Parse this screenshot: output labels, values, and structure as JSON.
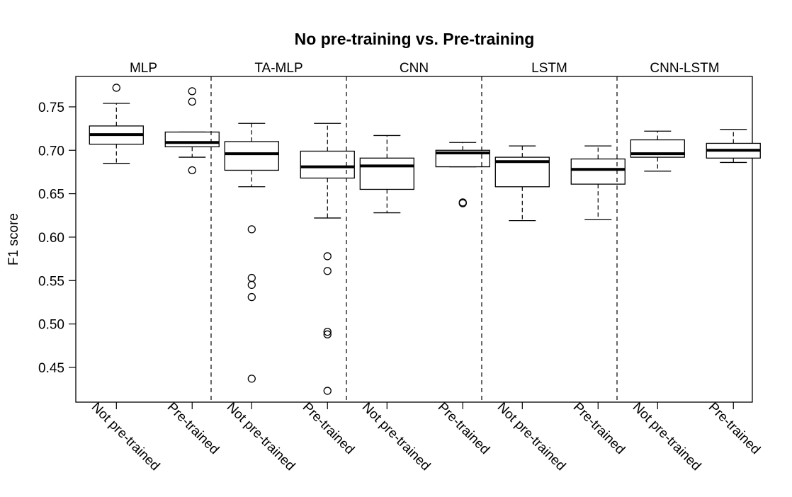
{
  "chart_data": {
    "type": "box",
    "title": "No pre-training vs. Pre-training",
    "ylabel": "F1 score",
    "xlabel": "",
    "ylim": [
      0.41,
      0.785
    ],
    "yticks": [
      0.45,
      0.5,
      0.55,
      0.6,
      0.65,
      0.7,
      0.75
    ],
    "ytick_labels": [
      "0.45",
      "0.50",
      "0.55",
      "0.60",
      "0.65",
      "0.70",
      "0.75"
    ],
    "grid": false,
    "legend": "none",
    "panels": [
      {
        "label": "MLP",
        "groups": [
          {
            "category": "Not pre-trained",
            "whisker_low": 0.685,
            "q1": 0.707,
            "median": 0.718,
            "q3": 0.728,
            "whisker_high": 0.754,
            "outliers": [
              0.772
            ]
          },
          {
            "category": "Pre-trained",
            "whisker_low": 0.692,
            "q1": 0.704,
            "median": 0.709,
            "q3": 0.721,
            "whisker_high": 0.721,
            "outliers": [
              0.768,
              0.756,
              0.677
            ]
          }
        ]
      },
      {
        "label": "TA-MLP",
        "groups": [
          {
            "category": "Not pre-trained",
            "whisker_low": 0.658,
            "q1": 0.677,
            "median": 0.696,
            "q3": 0.71,
            "whisker_high": 0.731,
            "outliers": [
              0.609,
              0.553,
              0.545,
              0.531,
              0.437
            ]
          },
          {
            "category": "Pre-trained",
            "whisker_low": 0.622,
            "q1": 0.668,
            "median": 0.681,
            "q3": 0.699,
            "whisker_high": 0.731,
            "outliers": [
              0.578,
              0.561,
              0.491,
              0.488,
              0.423
            ]
          }
        ]
      },
      {
        "label": "CNN",
        "groups": [
          {
            "category": "Not pre-trained",
            "whisker_low": 0.628,
            "q1": 0.655,
            "median": 0.682,
            "q3": 0.691,
            "whisker_high": 0.717,
            "outliers": []
          },
          {
            "category": "Pre-trained",
            "whisker_low": 0.681,
            "q1": 0.681,
            "median": 0.697,
            "q3": 0.7,
            "whisker_high": 0.709,
            "outliers": [
              0.64,
              0.639
            ]
          }
        ]
      },
      {
        "label": "LSTM",
        "groups": [
          {
            "category": "Not pre-trained",
            "whisker_low": 0.619,
            "q1": 0.658,
            "median": 0.687,
            "q3": 0.692,
            "whisker_high": 0.705,
            "outliers": []
          },
          {
            "category": "Pre-trained",
            "whisker_low": 0.62,
            "q1": 0.661,
            "median": 0.678,
            "q3": 0.69,
            "whisker_high": 0.705,
            "outliers": []
          }
        ]
      },
      {
        "label": "CNN-LSTM",
        "groups": [
          {
            "category": "Not pre-trained",
            "whisker_low": 0.676,
            "q1": 0.692,
            "median": 0.696,
            "q3": 0.712,
            "whisker_high": 0.722,
            "outliers": []
          },
          {
            "category": "Pre-trained",
            "whisker_low": 0.686,
            "q1": 0.691,
            "median": 0.7,
            "q3": 0.708,
            "whisker_high": 0.724,
            "outliers": []
          }
        ]
      }
    ]
  }
}
